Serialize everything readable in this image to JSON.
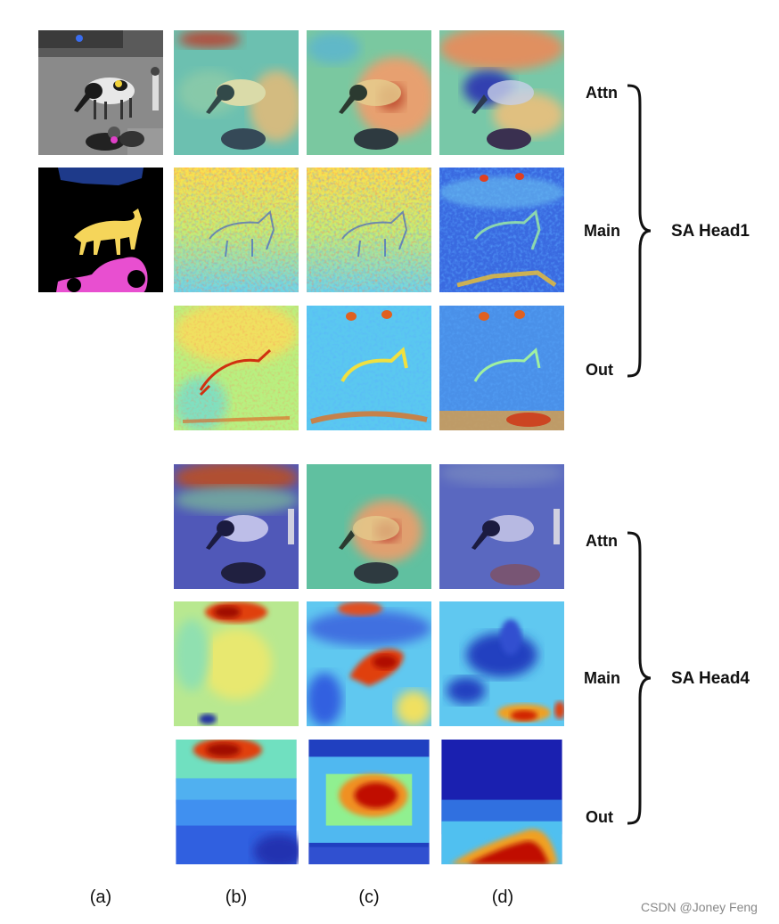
{
  "figure": {
    "columns": [
      "(a)",
      "(b)",
      "(c)",
      "(d)"
    ],
    "groups": [
      {
        "head_label": "SA Head1",
        "rows": [
          "Attn",
          "Main",
          "Out"
        ]
      },
      {
        "head_label": "SA Head4",
        "rows": [
          "Attn",
          "Main",
          "Out"
        ]
      }
    ],
    "query_point_colors": [
      "#3a6df0",
      "#f2d33a",
      "#e040c8"
    ],
    "segmentation_colors": {
      "background": "#000000",
      "cow": "#f5d55a",
      "motorbike": "#e84fd0",
      "car": "#1e3a8a"
    },
    "colormap": "jet",
    "watermark": "CSDN @Joney Feng"
  }
}
